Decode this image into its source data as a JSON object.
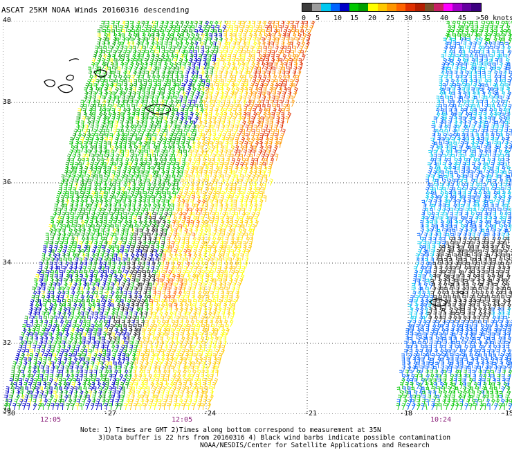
{
  "title": "ASCAT 25KM NOAA Winds 20160316 descending",
  "legend": {
    "colors": [
      "#3c3c3c",
      "#9c9c9c",
      "#00c8f0",
      "#0064ff",
      "#0000c8",
      "#00c800",
      "#00a000",
      "#ffff00",
      "#ffc800",
      "#ff9600",
      "#ff6400",
      "#e03000",
      "#b41e00",
      "#785028",
      "#c82064",
      "#ff00ff",
      "#a000c8",
      "#6400a0",
      "#3c0080"
    ],
    "ticks": [
      "0",
      "5",
      "10",
      "15",
      "20",
      "25",
      "30",
      "35",
      "40",
      "45",
      ">50 knots"
    ]
  },
  "lat_labels": [
    "40",
    "38",
    "36",
    "34",
    "32",
    "30"
  ],
  "lon_labels": [
    "-30",
    "-27",
    "-24",
    "-21",
    "-18",
    "-15"
  ],
  "time_labels": [
    "12:05",
    "12:05",
    "10:24"
  ],
  "notes": {
    "line1": "Note: 1) Times are GMT 2)Times along bottom correspond to measurement at 35N",
    "line2": "3)Data buffer is 22 hrs from 20160316 4) Black wind barbs indicate possible contamination",
    "line3": "NOAA/NESDIS/Center for Satellite Applications and Research"
  }
}
